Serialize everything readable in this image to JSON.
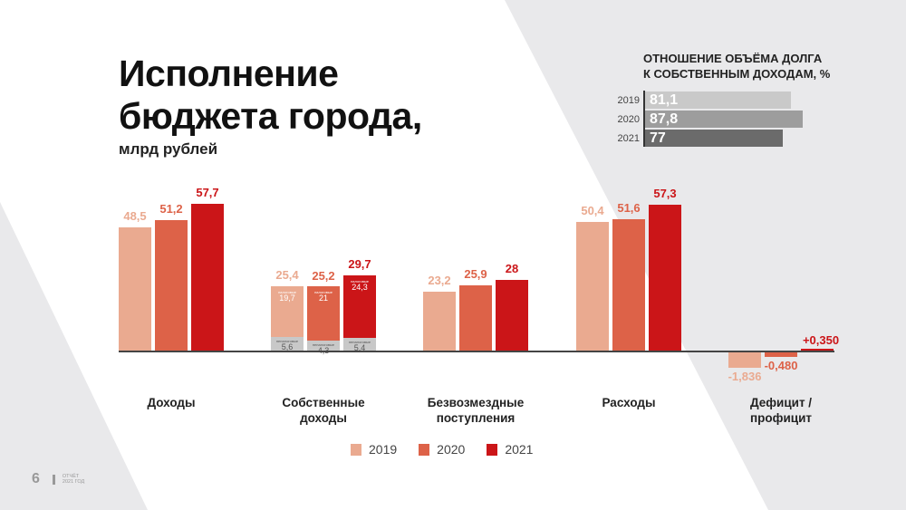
{
  "title_line1": "Исполнение",
  "title_line2": "бюджета города,",
  "subtitle": "млрд рублей",
  "debt": {
    "title_line1": "ОТНОШЕНИЕ ОБЪЁМА ДОЛГА",
    "title_line2": "К СОБСТВЕННЫМ ДОХОДАМ, %",
    "rows": [
      {
        "year": "2019",
        "value": 81.1,
        "label": "81,1",
        "color": "#c9c9c9"
      },
      {
        "year": "2020",
        "value": 87.8,
        "label": "87,8",
        "color": "#9d9d9d"
      },
      {
        "year": "2021",
        "value": 77,
        "label": "77",
        "color": "#6b6b6b"
      }
    ]
  },
  "colors": {
    "2019": "#eaaa90",
    "2020": "#dd6248",
    "2021": "#cb1518",
    "non_tax": "#c8c8c8"
  },
  "chart_data": {
    "type": "bar",
    "unit": "млрд рублей",
    "categories": [
      {
        "label1": "Доходы",
        "label2": ""
      },
      {
        "label1": "Собственные",
        "label2": "доходы"
      },
      {
        "label1": "Безвозмездные",
        "label2": "поступления"
      },
      {
        "label1": "Расходы",
        "label2": ""
      },
      {
        "label1": "Дефицит /",
        "label2": "профицит"
      }
    ],
    "series_names": [
      "2019",
      "2020",
      "2021"
    ],
    "values": [
      [
        {
          "v": 48.5,
          "label": "48,5"
        },
        {
          "v": 51.2,
          "label": "51,2"
        },
        {
          "v": 57.7,
          "label": "57,7"
        }
      ],
      [
        {
          "v": 25.4,
          "label": "25,4",
          "tax": 19.7,
          "tax_label": "19,7",
          "nontax": 5.6,
          "nontax_label": "5,6"
        },
        {
          "v": 25.2,
          "label": "25,2",
          "tax": 21,
          "tax_label": "21",
          "nontax": 4.3,
          "nontax_label": "4,3"
        },
        {
          "v": 29.7,
          "label": "29,7",
          "tax": 24.3,
          "tax_label": "24,3",
          "nontax": 5.4,
          "nontax_label": "5,4"
        }
      ],
      [
        {
          "v": 23.2,
          "label": "23,2"
        },
        {
          "v": 25.9,
          "label": "25,9"
        },
        {
          "v": 28,
          "label": "28"
        }
      ],
      [
        {
          "v": 50.4,
          "label": "50,4"
        },
        {
          "v": 51.6,
          "label": "51,6"
        },
        {
          "v": 57.3,
          "label": "57,3"
        }
      ],
      [
        {
          "v": -1.836,
          "label": "-1,836"
        },
        {
          "v": -0.48,
          "label": "-0,480"
        },
        {
          "v": 0.35,
          "label": "+0,350"
        }
      ]
    ],
    "segment_labels": {
      "tax": "налоговые",
      "nontax": "неналоговые"
    }
  },
  "legend": [
    "2019",
    "2020",
    "2021"
  ],
  "footer": {
    "page": "6",
    "report_line1": "ОТЧЁТ",
    "report_line2": "2021 ГОД"
  }
}
